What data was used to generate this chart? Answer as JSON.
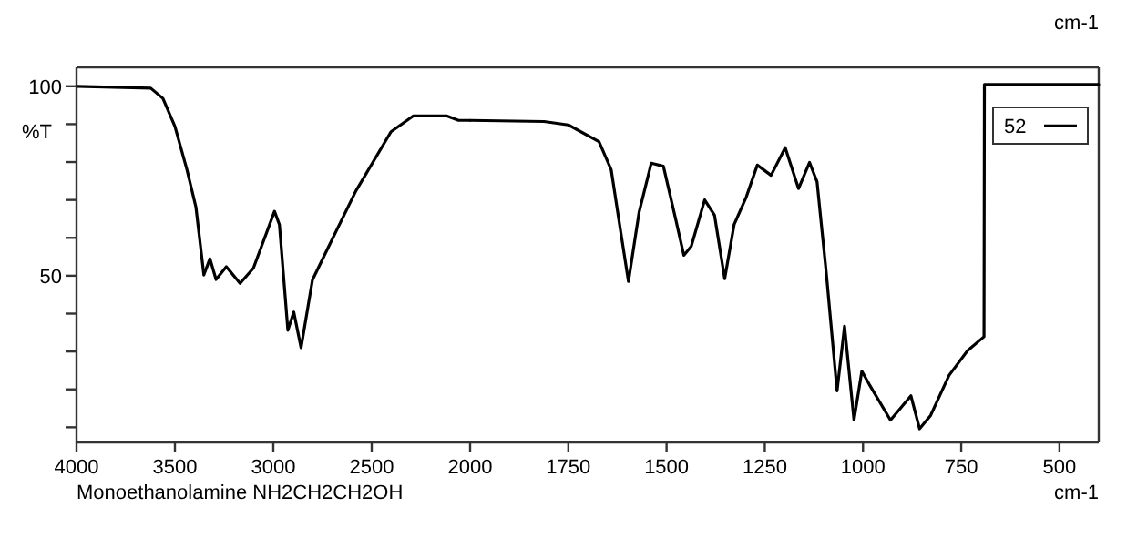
{
  "chart_data": [
    {
      "type": "line",
      "ylabel": "%T",
      "annotations": [
        "Monoethanolamine  NH2CH2CH2OH"
      ],
      "xlim": [
        4000,
        2000
      ],
      "xticks": [
        4000,
        3500,
        3000,
        2500,
        2000
      ],
      "ylim": [
        6,
        105
      ],
      "yticks": [
        {
          "value": 10,
          "label": null
        },
        {
          "value": 20,
          "label": null
        },
        {
          "value": 30,
          "label": null
        },
        {
          "value": 40,
          "label": null
        },
        50,
        {
          "value": 60,
          "label": null
        },
        {
          "value": 70,
          "label": null
        },
        {
          "value": 80,
          "label": null
        },
        {
          "value": 90,
          "label": null
        },
        100
      ],
      "grid": false,
      "marker": "none",
      "line_style": "solid",
      "series": [
        {
          "color": "#000000",
          "x": [
            4000,
            3623,
            3561,
            3500,
            3439,
            3393,
            3353,
            3322,
            3291,
            3239,
            3169,
            3101,
            2994,
            2969,
            2926,
            2896,
            2859,
            2801,
            2718,
            2580,
            2402,
            2288,
            2120,
            2059,
            2000
          ],
          "values": [
            100,
            99.5,
            96.8,
            89.4,
            78,
            68,
            50.2,
            54.5,
            49,
            52.4,
            48,
            52,
            67,
            63.5,
            35.6,
            40.4,
            31,
            48.9,
            57.8,
            72.4,
            88,
            92.2,
            92.2,
            91,
            91
          ]
        }
      ]
    },
    {
      "type": "line",
      "xlabel": "cm-1",
      "annotations": [
        "cm-1"
      ],
      "xlim": [
        2000,
        400
      ],
      "xticks": [
        1750,
        1500,
        1250,
        1000,
        750,
        500
      ],
      "ylim": [
        6,
        105
      ],
      "tick_labels": "x",
      "grid": false,
      "legend": "top right",
      "marker": "none",
      "line_style": "solid",
      "series": [
        {
          "name": "52",
          "color": "#000000",
          "x": [
            2000,
            1812,
            1750,
            1672,
            1641,
            1617,
            1597,
            1570,
            1539,
            1508,
            1477,
            1456,
            1437,
            1403,
            1378,
            1352,
            1328,
            1297,
            1269,
            1234,
            1198,
            1164,
            1136,
            1117,
            1094,
            1066,
            1047,
            1023,
            1003,
            984,
            930,
            878,
            856,
            828,
            781,
            734,
            692,
            691,
            400
          ],
          "values": [
            91,
            90.7,
            89.8,
            85.4,
            78,
            61.8,
            48.5,
            66.7,
            79.7,
            78.9,
            65,
            55.4,
            57.8,
            70,
            66,
            49.2,
            63.5,
            70.8,
            79.2,
            76.5,
            83.8,
            73,
            79.9,
            74.8,
            51.3,
            19.6,
            36.7,
            11.9,
            24.8,
            21.3,
            11.9,
            18.3,
            9.6,
            13.1,
            23.7,
            30.2,
            33.9,
            100.5,
            100.5
          ]
        }
      ]
    }
  ]
}
